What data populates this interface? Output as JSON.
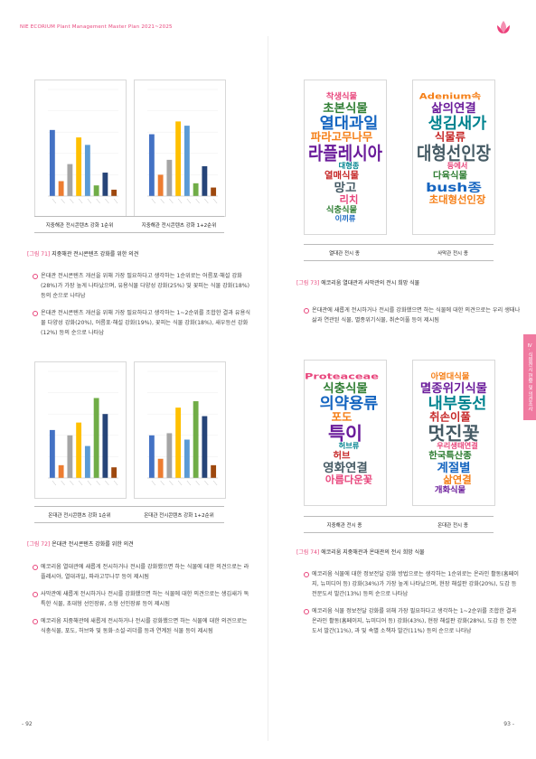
{
  "header": "NIE ECORIUM Plant Management Master Plan 2021~2025",
  "fig71": {
    "panels": [
      {
        "label": "지중해관 전시콘텐츠 강화 1순위",
        "chart": {
          "type": "bar",
          "ylim": [
            0,
            100
          ],
          "values": [
            62,
            14,
            30,
            55,
            48,
            10,
            22,
            6
          ],
          "colors": [
            "#4472c4",
            "#ed7d31",
            "#a5a5a5",
            "#ffc000",
            "#5b9bd5",
            "#70ad47",
            "#264478",
            "#9e480e"
          ]
        }
      },
      {
        "label": "지중해관 전시콘텐츠 강화 1+2순위",
        "chart": {
          "type": "bar",
          "ylim": [
            0,
            100
          ],
          "values": [
            58,
            20,
            34,
            70,
            66,
            12,
            28,
            8
          ],
          "colors": [
            "#4472c4",
            "#ed7d31",
            "#a5a5a5",
            "#ffc000",
            "#5b9bd5",
            "#70ad47",
            "#264478",
            "#9e480e"
          ]
        }
      }
    ],
    "num": "[그림 71]",
    "caption": "지중해관 전시콘텐츠 강화를 위한 의견"
  },
  "text71": [
    "온대관 전시콘텐츠 개선을 위해 가장 필요하다고 생각하는 1순위로는 어름포·해설 강화(28%)가 가장 높게 나타났으며, 유용식물 다양성 강화(25%) 및 꽃피는 식물 강화(18%) 등의 순으로 나타남",
    "온대관 전시콘텐츠 개선을 위해 가장 필요하다고 생각하는 1~2순위를 조합한 결과 유용식물 다양성 강화(20%), 어름포·해설 강화(19%), 꽃피는 식물 강화(18%), 새우등선 강화(12%) 등의 순으로 나타남"
  ],
  "fig72": {
    "panels": [
      {
        "label": "온대관 전시콘텐츠 강화 1순위",
        "chart": {
          "type": "bar",
          "ylim": [
            0,
            100
          ],
          "values": [
            45,
            12,
            40,
            52,
            30,
            75,
            60,
            10
          ],
          "colors": [
            "#4472c4",
            "#ed7d31",
            "#a5a5a5",
            "#ffc000",
            "#5b9bd5",
            "#70ad47",
            "#264478",
            "#9e480e"
          ]
        }
      },
      {
        "label": "온대관 전시콘텐츠 강화 1+2순위",
        "chart": {
          "type": "bar",
          "ylim": [
            0,
            100
          ],
          "values": [
            40,
            18,
            42,
            66,
            36,
            72,
            58,
            12
          ],
          "colors": [
            "#4472c4",
            "#ed7d31",
            "#a5a5a5",
            "#ffc000",
            "#5b9bd5",
            "#70ad47",
            "#264478",
            "#9e480e"
          ]
        }
      }
    ],
    "num": "[그림 72]",
    "caption": "온대관 전시콘텐츠 강화를 위한 의견"
  },
  "text72": [
    "에코리움 열대관에 새롭게 전시하거나 전시를 강화했으면 하는 식물에 대한 의견으로는 라플레시아, 열대과일, 파라고무나무 등이 제시됨",
    "사막관에 새롭게 전시하거나 전시를 강화했으면 하는 식물에 대한 의견으로는 생김새가 독특한 식물, 초대형 선인장류, 소형 선인장류 등이 제시됨",
    "에코리움 지중해관에 새롭게 전시하거나 전시를 강화했으면 하는 식물에 대한 의견으로는 식충식물, 포도, 허브와 및 동화·소설·리더를 등과 연계된 식물 등이 제시됨"
  ],
  "page_left": "- 92",
  "fig73": {
    "panels": [
      {
        "label": "열대관 전시 종",
        "words": [
          "착생식물",
          "초본식물",
          "열대과일",
          "파라고무나무",
          "라플레시아",
          "대형종",
          "열매식물",
          "망고",
          "리치",
          "식충식물",
          "이끼류"
        ]
      },
      {
        "label": "사막관 전시 종",
        "words": [
          "Adenium속",
          "삶의연결",
          "생김새가",
          "식물류",
          "대형선인장",
          "등에서",
          "다육식물",
          "bush종",
          "초대형선인장"
        ]
      }
    ],
    "num": "[그림 73]",
    "caption": "에코리움 열대관과 사막관의 전시 희망 식물"
  },
  "text73": [
    "온대관에 새롭게 전시하거나 전시를 강화했으면 하는 식물에 대한 의견으로는 우리 생태나 삶과 연관된 식물, 멸종위기식물, 취손이풀 등이 제시됨"
  ],
  "fig74": {
    "panels": [
      {
        "label": "지중해관 전시 종",
        "words": [
          "Proteaceae",
          "식충식물",
          "의약용류",
          "포도",
          "특이",
          "허브류",
          "허브",
          "영화연결",
          "아름다운꽃"
        ]
      },
      {
        "label": "온대관 전시 종",
        "words": [
          "아열대식물",
          "멸종위기식물",
          "내부동선",
          "취손이풀",
          "멋진꽃",
          "우리생태연결",
          "한국특산종",
          "계절별",
          "삶연결",
          "개화식물"
        ]
      }
    ],
    "num": "[그림 74]",
    "caption": "에코리움 지중해관과 온대관의 전시 희망 식물"
  },
  "text74": [
    "에코리움 식물에 대한 정보전달 강화 방법으로는 생각하는 1순위로는 온라인 활동(홈페이지, 뉴미디어 등) 강화(34%)가 가장 높게 나타났으며, 현장 해설판 강화(20%), 도감 등 전문도서 발간(13%) 등의 순으로 나타남",
    "에코리움 식물 정보전달 강화를 위해 가장 필요하다고 생각하는 1~2순위를 조합한 결과 온라인 활동(홈페이지, 뉴미디어 등) 강화(43%), 현장 해설판 강화(28%), 도감 등 전문도서 발간(11%), 과 및 속별 소책자 발간(11%) 등의 순으로 나타남"
  ],
  "page_right": "93 -",
  "side_tab": "Ⅳ. 식물전시 현황 및 의견조사"
}
